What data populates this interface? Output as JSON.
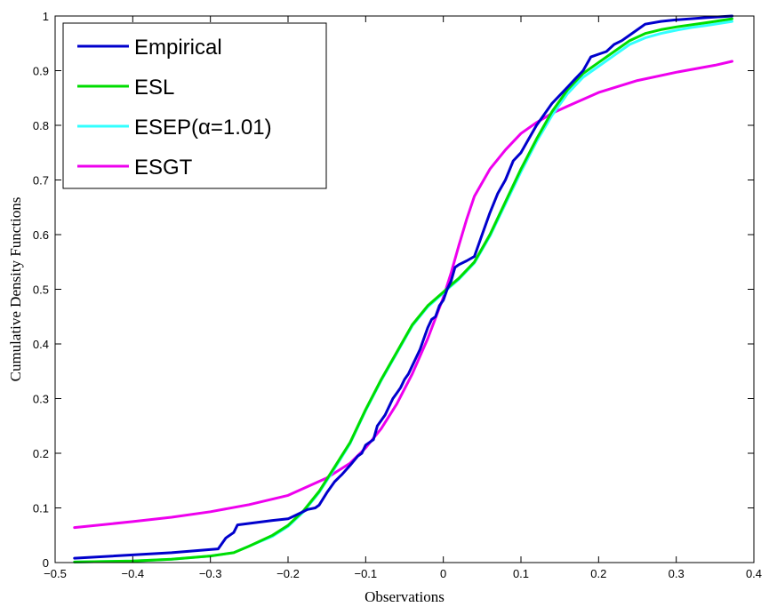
{
  "chart_data": {
    "type": "line",
    "title": "",
    "xlabel": "Observations",
    "ylabel": "Cumulative Density Functions",
    "xlim": [
      -0.5,
      0.4
    ],
    "ylim": [
      0,
      1
    ],
    "x_ticks": [
      "−0.5",
      "−0.4",
      "−0.3",
      "−0.2",
      "−0.1",
      "0",
      "0.1",
      "0.2",
      "0.3",
      "0.4"
    ],
    "y_ticks": [
      "0",
      "0.1",
      "0.2",
      "0.3",
      "0.4",
      "0.5",
      "0.6",
      "0.7",
      "0.8",
      "0.9",
      "1"
    ],
    "grid": false,
    "legend_position": "top-left",
    "series": [
      {
        "name": "Empirical",
        "color": "#0000cc",
        "x": [
          -0.475,
          -0.35,
          -0.29,
          -0.28,
          -0.27,
          -0.265,
          -0.22,
          -0.2,
          -0.185,
          -0.175,
          -0.165,
          -0.16,
          -0.15,
          -0.14,
          -0.13,
          -0.12,
          -0.11,
          -0.105,
          -0.1,
          -0.09,
          -0.085,
          -0.08,
          -0.075,
          -0.07,
          -0.065,
          -0.06,
          -0.055,
          -0.05,
          -0.045,
          -0.04,
          -0.035,
          -0.03,
          -0.025,
          -0.02,
          -0.015,
          -0.01,
          -0.005,
          0.0,
          0.005,
          0.01,
          0.015,
          0.02,
          0.03,
          0.04,
          0.05,
          0.06,
          0.07,
          0.08,
          0.09,
          0.1,
          0.11,
          0.12,
          0.13,
          0.14,
          0.15,
          0.16,
          0.17,
          0.18,
          0.19,
          0.2,
          0.21,
          0.22,
          0.23,
          0.24,
          0.25,
          0.26,
          0.28,
          0.3,
          0.34,
          0.372
        ],
        "y": [
          0.008,
          0.018,
          0.025,
          0.045,
          0.055,
          0.069,
          0.077,
          0.08,
          0.09,
          0.097,
          0.1,
          0.105,
          0.128,
          0.148,
          0.162,
          0.178,
          0.195,
          0.2,
          0.215,
          0.225,
          0.25,
          0.26,
          0.27,
          0.285,
          0.3,
          0.31,
          0.32,
          0.335,
          0.345,
          0.36,
          0.375,
          0.39,
          0.41,
          0.43,
          0.445,
          0.45,
          0.47,
          0.48,
          0.5,
          0.515,
          0.54,
          0.545,
          0.552,
          0.56,
          0.6,
          0.64,
          0.675,
          0.7,
          0.735,
          0.75,
          0.775,
          0.8,
          0.82,
          0.84,
          0.855,
          0.87,
          0.885,
          0.9,
          0.925,
          0.93,
          0.935,
          0.948,
          0.955,
          0.965,
          0.975,
          0.985,
          0.99,
          0.993,
          0.997,
          1.0
        ]
      },
      {
        "name": "ESL",
        "color": "#00dd00",
        "x": [
          -0.475,
          -0.4,
          -0.35,
          -0.3,
          -0.27,
          -0.25,
          -0.22,
          -0.2,
          -0.18,
          -0.16,
          -0.14,
          -0.12,
          -0.1,
          -0.08,
          -0.06,
          -0.04,
          -0.02,
          0.0,
          0.01,
          0.02,
          0.04,
          0.06,
          0.08,
          0.1,
          0.12,
          0.14,
          0.16,
          0.18,
          0.2,
          0.22,
          0.24,
          0.26,
          0.28,
          0.3,
          0.32,
          0.34,
          0.372
        ],
        "y": [
          0.001,
          0.003,
          0.006,
          0.012,
          0.018,
          0.03,
          0.05,
          0.068,
          0.095,
          0.13,
          0.175,
          0.22,
          0.28,
          0.335,
          0.385,
          0.435,
          0.47,
          0.495,
          0.508,
          0.52,
          0.55,
          0.6,
          0.66,
          0.72,
          0.775,
          0.825,
          0.865,
          0.895,
          0.915,
          0.935,
          0.955,
          0.968,
          0.975,
          0.98,
          0.984,
          0.988,
          0.995
        ]
      },
      {
        "name": "ESEP(α=1.01)",
        "color": "#33ffff",
        "x": [
          -0.475,
          -0.4,
          -0.35,
          -0.3,
          -0.27,
          -0.25,
          -0.22,
          -0.2,
          -0.18,
          -0.16,
          -0.14,
          -0.12,
          -0.1,
          -0.08,
          -0.06,
          -0.04,
          -0.02,
          0.0,
          0.01,
          0.02,
          0.04,
          0.06,
          0.08,
          0.1,
          0.12,
          0.14,
          0.16,
          0.18,
          0.2,
          0.22,
          0.24,
          0.26,
          0.28,
          0.3,
          0.32,
          0.34,
          0.372
        ],
        "y": [
          0.001,
          0.003,
          0.006,
          0.012,
          0.018,
          0.03,
          0.048,
          0.066,
          0.093,
          0.128,
          0.172,
          0.218,
          0.278,
          0.333,
          0.383,
          0.433,
          0.468,
          0.493,
          0.506,
          0.518,
          0.548,
          0.597,
          0.656,
          0.715,
          0.77,
          0.818,
          0.858,
          0.888,
          0.908,
          0.928,
          0.948,
          0.96,
          0.968,
          0.974,
          0.979,
          0.983,
          0.99
        ]
      },
      {
        "name": "ESGT",
        "color": "#ee00ee",
        "x": [
          -0.475,
          -0.4,
          -0.35,
          -0.3,
          -0.25,
          -0.2,
          -0.15,
          -0.12,
          -0.1,
          -0.08,
          -0.06,
          -0.04,
          -0.02,
          0.0,
          0.01,
          0.02,
          0.03,
          0.04,
          0.06,
          0.08,
          0.1,
          0.12,
          0.14,
          0.16,
          0.2,
          0.25,
          0.3,
          0.35,
          0.372
        ],
        "y": [
          0.064,
          0.075,
          0.083,
          0.093,
          0.106,
          0.123,
          0.155,
          0.182,
          0.21,
          0.245,
          0.29,
          0.345,
          0.41,
          0.485,
          0.53,
          0.58,
          0.628,
          0.67,
          0.72,
          0.755,
          0.785,
          0.805,
          0.822,
          0.835,
          0.86,
          0.882,
          0.897,
          0.91,
          0.917
        ]
      }
    ]
  }
}
